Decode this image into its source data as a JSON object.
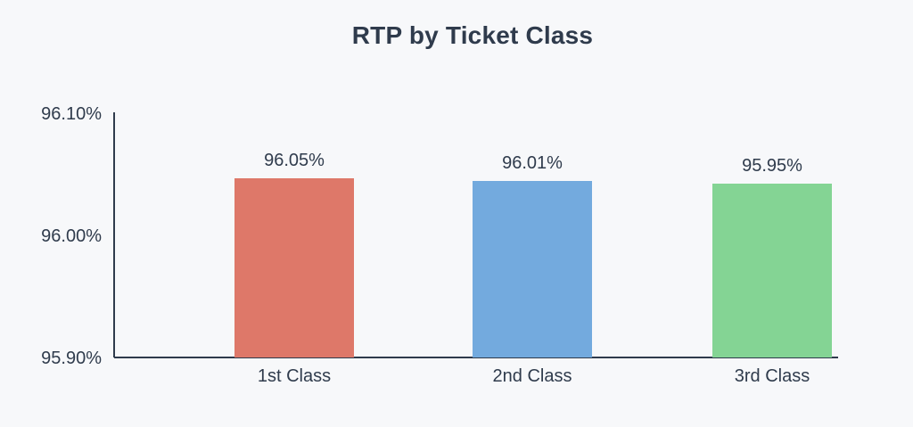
{
  "chart_data": {
    "type": "bar",
    "title": "RTP by Ticket Class",
    "xlabel": "",
    "ylabel": "",
    "categories": [
      "1st Class",
      "2nd Class",
      "3rd Class"
    ],
    "values": [
      96.05,
      96.01,
      95.95
    ],
    "data_labels": [
      "96.05%",
      "96.01%",
      "95.95%"
    ],
    "colors": [
      "#de7869",
      "#73aade",
      "#84d494"
    ],
    "y_ticks": [
      95.9,
      96.0,
      96.1
    ],
    "y_tick_labels": [
      "95.90%",
      "96.00%",
      "96.10%"
    ],
    "ylim": [
      95.9,
      96.1
    ],
    "grid": false,
    "legend": "none"
  }
}
